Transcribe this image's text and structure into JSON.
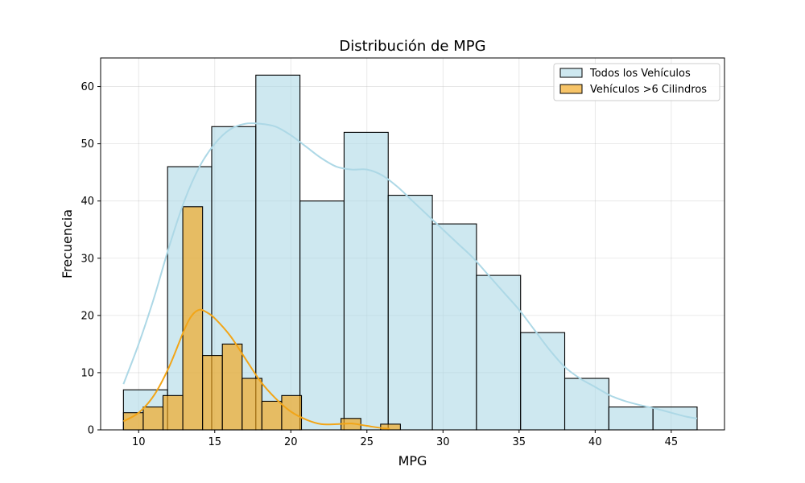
{
  "chart_data": {
    "type": "bar",
    "title": "Distribución de MPG",
    "xlabel": "MPG",
    "ylabel": "Frecuencia",
    "xlim": [
      7.5,
      48.5
    ],
    "ylim": [
      0,
      65
    ],
    "xticks": [
      10,
      15,
      20,
      25,
      30,
      35,
      40,
      45
    ],
    "yticks": [
      0,
      10,
      20,
      30,
      40,
      50,
      60
    ],
    "grid": true,
    "legend_position": "top-right",
    "series": [
      {
        "name": "Todos los Vehículos",
        "color": "#add8e6",
        "bin_edges": [
          9.0,
          11.9,
          14.8,
          17.7,
          20.6,
          23.5,
          26.4,
          29.3,
          32.2,
          35.1,
          38.0,
          40.9,
          43.8,
          46.7
        ],
        "counts": [
          7,
          46,
          53,
          62,
          40,
          52,
          41,
          36,
          27,
          17,
          9,
          4,
          4
        ],
        "kde_x": [
          9,
          10,
          11,
          12,
          13,
          14,
          15,
          16,
          17,
          18,
          19,
          20,
          21,
          22,
          23,
          24,
          25,
          26,
          27,
          28,
          29,
          30,
          31,
          32,
          33,
          34,
          35,
          36,
          37,
          38,
          39,
          40,
          41,
          42,
          43,
          44,
          45,
          46,
          46.7
        ],
        "kde_y": [
          8,
          15,
          23,
          32,
          40,
          46,
          50,
          52.5,
          53.5,
          53.5,
          53,
          51.5,
          49.5,
          47.5,
          46,
          45.5,
          45.5,
          44.5,
          42.5,
          40,
          37.5,
          35,
          32.5,
          30,
          27,
          24,
          21,
          17.5,
          14,
          11,
          9,
          7.5,
          6,
          5,
          4.3,
          3.7,
          3,
          2.3,
          2
        ]
      },
      {
        "name": "Vehículos >6 Cilindros",
        "color": "#f2a517",
        "bin_edges": [
          9.0,
          10.3,
          11.6,
          12.9,
          14.2,
          15.5,
          16.8,
          18.1,
          19.4,
          20.7,
          22.0,
          23.3,
          24.6,
          25.9,
          27.2
        ],
        "counts": [
          3,
          4,
          6,
          39,
          13,
          15,
          9,
          5,
          6,
          0,
          0,
          2,
          0,
          1
        ],
        "kde_x": [
          9,
          10,
          11,
          12,
          13,
          13.5,
          14,
          14.5,
          15,
          16,
          17,
          18,
          19,
          20,
          21,
          22,
          23,
          24,
          25,
          26,
          26.5
        ],
        "kde_y": [
          1.5,
          3,
          6,
          11,
          17.5,
          20,
          21,
          20.5,
          19.5,
          16.5,
          12.5,
          8.5,
          5.5,
          3.2,
          1.8,
          1,
          1,
          1.1,
          0.7,
          0.3,
          0.2
        ]
      }
    ]
  }
}
